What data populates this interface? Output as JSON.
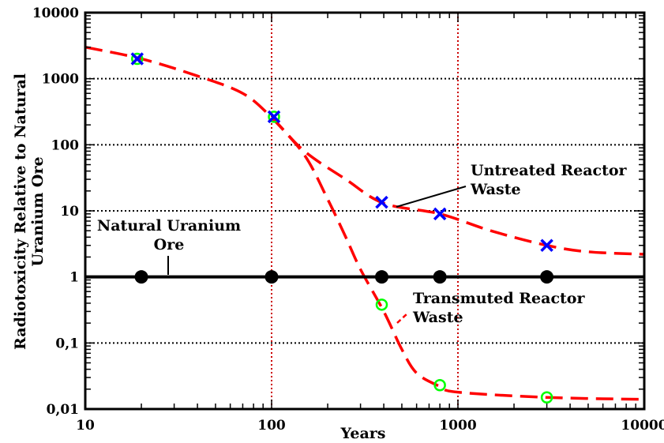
{
  "chart_data": {
    "type": "line",
    "xscale": "log",
    "yscale": "log",
    "xlim": [
      10,
      10000
    ],
    "ylim": [
      0.01,
      10000
    ],
    "xlabel": "Years",
    "ylabel_lines": [
      "Radiotoxicity Relative to Natural",
      "Uranium Ore"
    ],
    "x_ticks": [
      {
        "value": 10,
        "label": "10"
      },
      {
        "value": 100,
        "label": "100"
      },
      {
        "value": 1000,
        "label": "1000"
      },
      {
        "value": 10000,
        "label": "10000"
      }
    ],
    "y_ticks": [
      {
        "value": 0.01,
        "label": "0,01"
      },
      {
        "value": 0.1,
        "label": "0,1"
      },
      {
        "value": 1,
        "label": "1"
      },
      {
        "value": 10,
        "label": "10"
      },
      {
        "value": 100,
        "label": "100"
      },
      {
        "value": 1000,
        "label": "1000"
      },
      {
        "value": 10000,
        "label": "10000"
      }
    ],
    "grid": {
      "horizontal": "dotted black",
      "vertical": "dotted red at 100 and 1000"
    },
    "colors": {
      "curve": "#ff0000",
      "untreated_marker": "#0000ff",
      "transmuted_marker": "#00ff00",
      "ore_line": "#000000",
      "grid_vertical": "#cc0000"
    },
    "series": [
      {
        "key": "untreated",
        "label_lines": [
          "Untreated Reactor",
          "Waste"
        ],
        "style": "dashed-red-curve",
        "marker": "x-blue",
        "curve": [
          [
            10,
            3000
          ],
          [
            20,
            2000
          ],
          [
            40,
            1100
          ],
          [
            70,
            600
          ],
          [
            100,
            260
          ],
          [
            150,
            80
          ],
          [
            250,
            30
          ],
          [
            400,
            13
          ],
          [
            800,
            9
          ],
          [
            1500,
            5
          ],
          [
            3000,
            3
          ],
          [
            5000,
            2.4
          ],
          [
            10000,
            2.2
          ]
        ],
        "points": [
          [
            19,
            2000
          ],
          [
            103,
            265
          ],
          [
            390,
            13.5
          ],
          [
            800,
            9
          ],
          [
            3000,
            3
          ]
        ]
      },
      {
        "key": "transmuted",
        "label_lines": [
          "Transmuted Reactor",
          "Waste"
        ],
        "style": "dashed-red-curve",
        "marker": "circle-green",
        "curve": [
          [
            100,
            260
          ],
          [
            150,
            70
          ],
          [
            200,
            15
          ],
          [
            250,
            4
          ],
          [
            300,
            1.3
          ],
          [
            400,
            0.3
          ],
          [
            500,
            0.08
          ],
          [
            600,
            0.035
          ],
          [
            800,
            0.022
          ],
          [
            1000,
            0.018
          ],
          [
            3000,
            0.015
          ],
          [
            10000,
            0.014
          ]
        ],
        "points": [
          [
            19,
            2000
          ],
          [
            103,
            265
          ],
          [
            390,
            0.38
          ],
          [
            800,
            0.023
          ],
          [
            3000,
            0.015
          ]
        ]
      },
      {
        "key": "ore",
        "label_lines": [
          "Natural Uranium",
          "Ore"
        ],
        "style": "solid-black-line",
        "marker": "dot-black",
        "curve": [
          [
            10,
            1
          ],
          [
            10000,
            1
          ]
        ],
        "points": [
          [
            20,
            1
          ],
          [
            100,
            1
          ],
          [
            390,
            1
          ],
          [
            800,
            1
          ],
          [
            3000,
            1
          ]
        ]
      }
    ]
  }
}
